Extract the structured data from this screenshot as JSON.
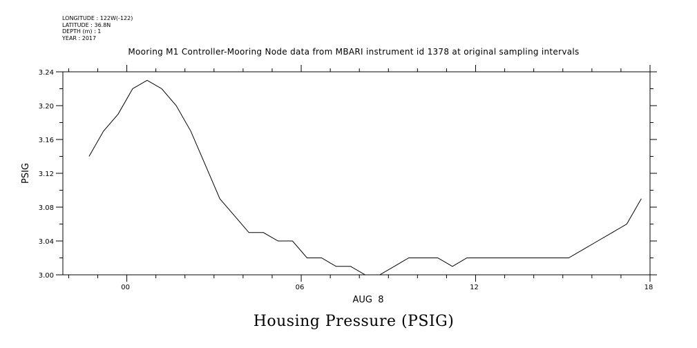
{
  "meta": {
    "lines": [
      "LONGITUDE : 122W(-122)",
      "LATITUDE : 36.8N",
      "DEPTH (m) : 1",
      "YEAR : 2017"
    ]
  },
  "caption": "Housing Pressure (PSIG)",
  "chart_data": {
    "type": "line",
    "title": "Mooring M1 Controller-Mooring Node data from MBARI instrument id 1378 at original sampling intervals",
    "ylabel": "PSIG",
    "xlabel": "AUG  8",
    "xlim": [
      -2.2,
      18
    ],
    "ylim": [
      3.0,
      3.24
    ],
    "x_ticks": [
      0,
      6,
      12,
      18
    ],
    "x_tick_labels": [
      "00",
      "06",
      "12",
      "18"
    ],
    "y_ticks": [
      3.0,
      3.04,
      3.08,
      3.12,
      3.16,
      3.2,
      3.24
    ],
    "y_tick_labels": [
      "3.00",
      "3.04",
      "3.08",
      "3.12",
      "3.16",
      "3.20",
      "3.24"
    ],
    "grid": false,
    "line_color": "#000000",
    "series": [
      {
        "x": [
          -1.3,
          -0.8,
          -0.3,
          0.2,
          0.7,
          1.2,
          1.7,
          2.2,
          2.7,
          3.2,
          3.7,
          4.2,
          4.7,
          5.2,
          5.7,
          6.2,
          6.7,
          7.2,
          7.7,
          8.2,
          8.7,
          9.2,
          9.7,
          10.2,
          10.7,
          11.2,
          11.7,
          12.2,
          12.7,
          13.2,
          13.7,
          14.2,
          14.7,
          15.2,
          15.7,
          16.2,
          16.7,
          17.2,
          17.7
        ],
        "y": [
          3.14,
          3.17,
          3.19,
          3.22,
          3.23,
          3.22,
          3.2,
          3.17,
          3.13,
          3.09,
          3.07,
          3.05,
          3.05,
          3.04,
          3.04,
          3.02,
          3.02,
          3.01,
          3.01,
          3.0,
          3.0,
          3.01,
          3.02,
          3.02,
          3.02,
          3.01,
          3.02,
          3.02,
          3.02,
          3.02,
          3.02,
          3.02,
          3.02,
          3.02,
          3.03,
          3.04,
          3.05,
          3.06,
          3.09
        ]
      }
    ]
  }
}
